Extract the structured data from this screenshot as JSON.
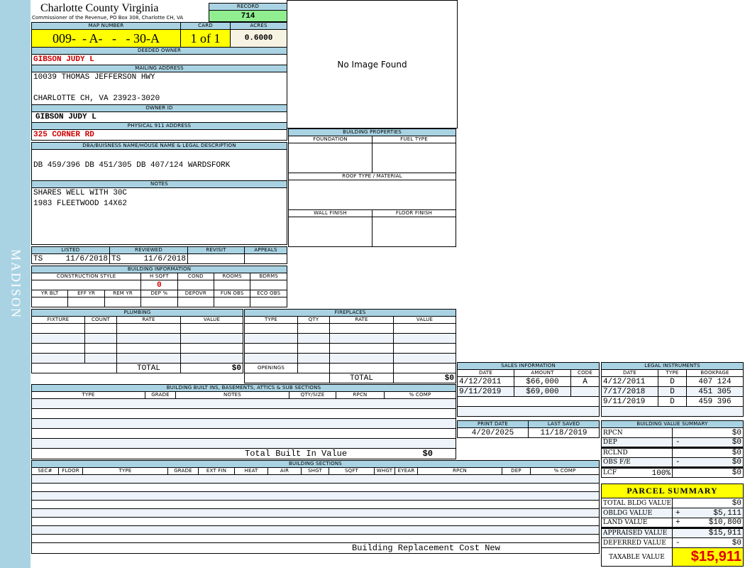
{
  "sidebar": {
    "district": "MADISON"
  },
  "header": {
    "title": "Charlotte County Virginia",
    "subtitle": "Commissioner of the Revenue, PO Box 308, Charlotte CH, VA",
    "record_label": "RECORD",
    "record": "714"
  },
  "parcel": {
    "map_label": "MAP NUMBER",
    "map": "009-  - A-   -   - 30-A",
    "card_label": "CARD",
    "card": "1 of 1",
    "acres_label": "ACRES",
    "acres": "0.6000"
  },
  "owner": {
    "deeded_label": "DEEDED OWNER",
    "deeded": "GIBSON JUDY L",
    "mailing_label": "MAILING ADDRESS",
    "mail1": "10039 THOMAS JEFFERSON HWY",
    "mail2": "CHARLOTTE CH, VA 23923-3020",
    "id_label": "OWNER ID",
    "id": "GIBSON JUDY L",
    "addr_label": "PHYSICAL 911 ADDRESS",
    "addr": "325 CORNER RD"
  },
  "image": {
    "text": "No Image Found"
  },
  "legal": {
    "label": "DBA/BUISNESS NAME/HOUSE NAME & LEGAL DESCRIPTION",
    "text": "DB 459/396 DB 451/305 DB 407/124 WARDSFORK"
  },
  "notes": {
    "label": "NOTES",
    "line1": "SHARES WELL WITH 30C",
    "line2": "1983 FLEETWOOD 14X62"
  },
  "listing": {
    "listed_label": "LISTED",
    "listed_by": "TS",
    "listed": "11/6/2018",
    "reviewed_label": "REVIEWED",
    "reviewed_by": "TS",
    "reviewed": "11/6/2018",
    "revisit_label": "REVISIT",
    "appeals_label": "APPEALS"
  },
  "bldg_info": {
    "label": "BUILDING INFORMATION",
    "cols1": [
      "CONSTRUCTION STYLE",
      "H SQFT",
      "COND",
      "ROOMS",
      "BDRMS"
    ],
    "hsqft": "0",
    "cols2": [
      "YR BLT",
      "EFF YR",
      "REM YR",
      "DEP %",
      "DEPOVR",
      "FUN OBS",
      "ECO OBS"
    ]
  },
  "bldg_props": {
    "label": "BUILDING PROPERTIES",
    "foundation": "FOUNDATION",
    "fuel": "FUEL TYPE",
    "roof": "ROOF TYPE / MATERIAL",
    "wall": "WALL FINISH",
    "floor": "FLOOR FINISH"
  },
  "plumbing": {
    "label": "PLUMBING",
    "cols": [
      "FIXTURE",
      "COUNT",
      "RATE",
      "VALUE"
    ],
    "total_label": "TOTAL",
    "total": "$0"
  },
  "fireplaces": {
    "label": "FIREPLACES",
    "cols": [
      "TYPE",
      "QTY",
      "RATE",
      "VALUE"
    ],
    "openings": "OPENINGS",
    "total_label": "TOTAL",
    "total": "$0"
  },
  "builtins": {
    "label": "BUILDING BUILT INS, BASEMENTS, ATTICS & SUB SECTIONS",
    "cols": [
      "TYPE",
      "GRADE",
      "NOTES",
      "QTY/SIZE",
      "RPCN",
      "% COMP"
    ],
    "total_label": "Total Built In Value",
    "total": "$0"
  },
  "sections": {
    "label": "BUILDING SECTIONS",
    "cols": [
      "SEC#",
      "FLOOR",
      "TYPE",
      "GRADE",
      "EXT FIN",
      "HEAT",
      "AIR",
      "SHGT",
      "SQFT",
      "WHGT",
      "EYEAR",
      "RPCN",
      "DEP",
      "% COMP"
    ],
    "footer": "Building Replacement Cost New"
  },
  "sales": {
    "label": "SALES INFORMATION",
    "cols": [
      "DATE",
      "AMOUNT",
      "CODE"
    ],
    "rows": [
      [
        "4/12/2011",
        "$66,000",
        "A"
      ],
      [
        "9/11/2019",
        "$69,000",
        ""
      ]
    ]
  },
  "instruments": {
    "label": "LEGAL INSTRUMENTS",
    "cols": [
      "DATE",
      "TYPE",
      "BOOKPAGE"
    ],
    "rows": [
      [
        "4/12/2011",
        "D",
        "407 124"
      ],
      [
        "7/17/2018",
        "D",
        "451 305"
      ],
      [
        "9/11/2019",
        "D",
        "459 396"
      ]
    ]
  },
  "dates": {
    "print_label": "PRINT DATE",
    "print": "4/20/2025",
    "saved_label": "LAST SAVED",
    "saved": "11/18/2019"
  },
  "bvs": {
    "label": "BUILDING VALUE SUMMARY",
    "rows": [
      [
        "RPCN",
        "",
        "$0"
      ],
      [
        "DEP",
        "-",
        "$0"
      ],
      [
        "RCLND",
        "",
        "$0"
      ],
      [
        "OBS F/E",
        "-",
        "$0"
      ],
      [
        "LCF",
        "",
        "$0"
      ]
    ],
    "lcf_pct": "100%"
  },
  "summary": {
    "label": "PARCEL SUMMARY",
    "rows": [
      [
        "TOTAL BLDG VALUE",
        "",
        "$0"
      ],
      [
        "OBLDG VALUE",
        "+",
        "$5,111"
      ],
      [
        "LAND VALUE",
        "+",
        "$10,800"
      ],
      [
        "APPRAISED VALUE",
        "",
        "$15,911"
      ],
      [
        "DEFERRED VALUE",
        "-",
        "$0"
      ]
    ],
    "taxable_label": "TAXABLE VALUE",
    "taxable": "$15,911"
  },
  "colors": {
    "header_blue": "#a9d3e3",
    "record_green": "#90ee90",
    "highlight_yellow": "#ffff00",
    "red": "#d00000"
  }
}
